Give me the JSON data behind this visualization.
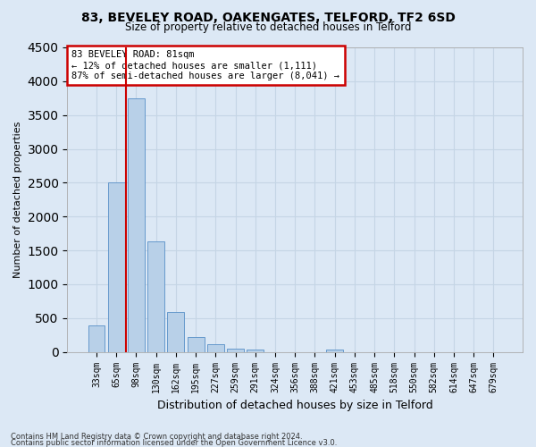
{
  "title1": "83, BEVELEY ROAD, OAKENGATES, TELFORD, TF2 6SD",
  "title2": "Size of property relative to detached houses in Telford",
  "xlabel": "Distribution of detached houses by size in Telford",
  "ylabel": "Number of detached properties",
  "categories": [
    "33sqm",
    "65sqm",
    "98sqm",
    "130sqm",
    "162sqm",
    "195sqm",
    "227sqm",
    "259sqm",
    "291sqm",
    "324sqm",
    "356sqm",
    "388sqm",
    "421sqm",
    "453sqm",
    "485sqm",
    "518sqm",
    "550sqm",
    "582sqm",
    "614sqm",
    "647sqm",
    "679sqm"
  ],
  "values": [
    390,
    2500,
    3750,
    1630,
    590,
    220,
    110,
    55,
    40,
    0,
    0,
    0,
    40,
    0,
    0,
    0,
    0,
    0,
    0,
    0,
    0
  ],
  "bar_color": "#b8d0e8",
  "bar_edge_color": "#6699cc",
  "red_line_color": "#cc0000",
  "red_line_x": 1.5,
  "annotation_text1": "83 BEVELEY ROAD: 81sqm",
  "annotation_text2": "← 12% of detached houses are smaller (1,111)",
  "annotation_text3": "87% of semi-detached houses are larger (8,041) →",
  "annotation_box_facecolor": "#ffffff",
  "annotation_box_edgecolor": "#cc0000",
  "grid_color": "#c5d5e5",
  "background_color": "#dce8f5",
  "ylim": [
    0,
    4500
  ],
  "yticks": [
    0,
    500,
    1000,
    1500,
    2000,
    2500,
    3000,
    3500,
    4000,
    4500
  ],
  "footer1": "Contains HM Land Registry data © Crown copyright and database right 2024.",
  "footer2": "Contains public sector information licensed under the Open Government Licence v3.0."
}
